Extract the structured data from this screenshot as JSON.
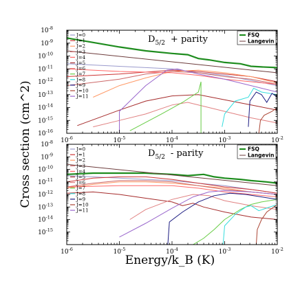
{
  "figure": {
    "ylabel": "Cross section (cm^2)",
    "xlabel": "Energy/k_B (K)"
  },
  "colors": {
    "FSQ": "#1e8c1e",
    "Langevin": "#6b3a3a",
    "J=0": "#9999cc",
    "J=1": "#cc3333",
    "J=2": "#ff9966",
    "J=3": "#cc6666",
    "J=4": "#ff6666",
    "J=5": "#a52a2a",
    "J=6": "#e08080",
    "J=7": "#66cc44",
    "J=8": "#33dddd",
    "J=9": "#1a1a80",
    "J=10": "#aa4433",
    "J=11": "#9966cc"
  },
  "chart_data": [
    {
      "type": "line",
      "title_main": "D",
      "title_sub": "5/2",
      "title_rest": "+ parity",
      "xlabel": "Energy/k_B (K)",
      "ylabel": "Cross section (cm^2)",
      "xscale": "log",
      "yscale": "log",
      "xlim": [
        1e-06,
        0.01
      ],
      "ylim": [
        1e-16,
        1e-08
      ],
      "xticks": [
        -6,
        -5,
        -4,
        -3,
        -2
      ],
      "yticks": [
        -16,
        -15,
        -14,
        -13,
        -12,
        -11,
        -10,
        -9,
        -8
      ],
      "legend_position": "top-right",
      "legend_bold": [
        "FSQ",
        "Langevin"
      ],
      "legend_left": [
        "J=0",
        "J=1",
        "J=2",
        "J=3",
        "J=4",
        "J=5",
        "J=6",
        "J=7",
        "J=8",
        "J=9",
        "J=10",
        "J=11"
      ],
      "series": [
        {
          "name": "FSQ",
          "bold": true,
          "x": [
            -6,
            -5.5,
            -5,
            -4.5,
            -4,
            -3.7,
            -3.5,
            -3.3,
            -3,
            -2.7,
            -2.5,
            -2.3,
            -2
          ],
          "y": [
            -8.6,
            -8.95,
            -9.3,
            -9.6,
            -9.8,
            -9.9,
            -10.2,
            -10.3,
            -10.5,
            -10.6,
            -10.8,
            -10.85,
            -10.9
          ]
        },
        {
          "name": "Langevin",
          "x": [
            -6,
            -2
          ],
          "y": [
            -9.6,
            -11.3
          ]
        },
        {
          "name": "J=0",
          "x": [
            -6,
            -5,
            -4,
            -3.5,
            -3,
            -2.5,
            -2
          ],
          "y": [
            -10.6,
            -10.8,
            -11.0,
            -11.3,
            -11.5,
            -11.9,
            -12.3
          ]
        },
        {
          "name": "J=1",
          "x": [
            -6,
            -5,
            -4,
            -3.5,
            -3,
            -2.5,
            -2
          ],
          "y": [
            -11.6,
            -11.4,
            -11.1,
            -11.2,
            -11.4,
            -11.6,
            -12.0
          ]
        },
        {
          "name": "J=2",
          "x": [
            -5.5,
            -5,
            -4.5,
            -4,
            -3.5,
            -3,
            -2.5,
            -2
          ],
          "y": [
            -13.2,
            -12.3,
            -11.7,
            -11.2,
            -11.1,
            -11.3,
            -11.6,
            -12.1
          ]
        },
        {
          "name": "J=3",
          "x": [
            -6,
            -5,
            -4.5,
            -4,
            -3.5,
            -3,
            -2.5,
            -2
          ],
          "y": [
            -12.3,
            -11.8,
            -11.4,
            -11.2,
            -11.3,
            -11.6,
            -11.8,
            -12.2
          ]
        },
        {
          "name": "J=4",
          "x": [
            -6,
            -5,
            -4,
            -3.5,
            -3,
            -2.5,
            -2
          ],
          "y": [
            -11.0,
            -11.2,
            -11.3,
            -11.5,
            -11.8,
            -12.0,
            -12.2
          ]
        },
        {
          "name": "J=5",
          "x": [
            -5.8,
            -5,
            -4.5,
            -4,
            -3.5,
            -3,
            -2.5,
            -2
          ],
          "y": [
            -15.4,
            -14.2,
            -13.5,
            -13.1,
            -13.0,
            -13.4,
            -13.8,
            -14.2
          ]
        },
        {
          "name": "J=6",
          "x": [
            -5.5,
            -5,
            -4.5,
            -4,
            -3.7,
            -3.4,
            -3,
            -2.5,
            -2
          ],
          "y": [
            -15.5,
            -15.0,
            -14.5,
            -13.8,
            -13.6,
            -13.9,
            -14.3,
            -14.8,
            -15.2
          ]
        },
        {
          "name": "J=7",
          "x": [
            -4.8,
            -4.2,
            -3.8,
            -3.5,
            -3.45,
            -3.45
          ],
          "y": [
            -15.8,
            -14.5,
            -13.6,
            -12.8,
            -12.0,
            -16.0
          ]
        },
        {
          "name": "J=8",
          "x": [
            -3.05,
            -3.0,
            -2.8,
            -2.55,
            -2.45,
            -2.3,
            -2.0
          ],
          "y": [
            -15.5,
            -14.5,
            -13.5,
            -13.2,
            -12.5,
            -12.8,
            -13.0
          ]
        },
        {
          "name": "J=9",
          "x": [
            -2.55,
            -2.52,
            -2.4,
            -2.3,
            -2.2,
            -2.1,
            -2.0
          ],
          "y": [
            -15.5,
            -13.5,
            -12.8,
            -13.0,
            -13.6,
            -12.9,
            -13.2
          ]
        },
        {
          "name": "J=10",
          "x": [
            -2.35,
            -2.32,
            -2.25,
            -2.1,
            -2.0
          ],
          "y": [
            -16.0,
            -15.0,
            -14.6,
            -14.3,
            -14.0
          ]
        },
        {
          "name": "J=11",
          "x": [
            -5.0,
            -5.0,
            -4.8,
            -4.5,
            -4.1,
            -3.9,
            -3.5,
            -3.0,
            -2.5,
            -2.0
          ],
          "y": [
            -16.0,
            -14.3,
            -13.5,
            -12.3,
            -11.1,
            -11.0,
            -11.4,
            -11.8,
            -12.3,
            -12.8
          ]
        }
      ]
    },
    {
      "type": "line",
      "title_main": "D",
      "title_sub": "5/2",
      "title_rest": "- parity",
      "xlabel": "Energy/k_B (K)",
      "ylabel": "Cross section (cm^2)",
      "xscale": "log",
      "yscale": "log",
      "xlim": [
        1e-06,
        0.01
      ],
      "ylim": [
        1e-16,
        1e-08
      ],
      "xticks": [
        -6,
        -5,
        -4,
        -3,
        -2
      ],
      "yticks": [
        -15,
        -14,
        -13,
        -12,
        -11,
        -10,
        -9,
        -8
      ],
      "legend_position": "top-right",
      "legend_bold": [
        "FSQ",
        "Langevin"
      ],
      "legend_left": [
        "J=0",
        "J=1",
        "J=2",
        "J=3",
        "J=4",
        "J=5",
        "J=6",
        "J=7",
        "J=8",
        "J=9",
        "J=10",
        "J=11"
      ],
      "series": [
        {
          "name": "FSQ",
          "bold": true,
          "x": [
            -6,
            -5.5,
            -5,
            -4.5,
            -4,
            -3.7,
            -3.4,
            -3.2,
            -3,
            -2.7,
            -2.5,
            -2.2,
            -2
          ],
          "y": [
            -10.4,
            -10.3,
            -10.3,
            -10.3,
            -10.4,
            -10.5,
            -10.4,
            -10.6,
            -10.7,
            -10.8,
            -10.9,
            -11.0,
            -11.1
          ]
        },
        {
          "name": "Langevin",
          "x": [
            -6,
            -2
          ],
          "y": [
            -9.6,
            -11.3
          ]
        },
        {
          "name": "J=0",
          "x": [
            -6,
            -5,
            -4,
            -3.5,
            -3,
            -2.5,
            -2
          ],
          "y": [
            -10.5,
            -10.7,
            -10.9,
            -11.1,
            -11.3,
            -11.6,
            -11.9
          ]
        },
        {
          "name": "J=1",
          "x": [
            -6,
            -5.5,
            -5,
            -4.5,
            -4,
            -3.5,
            -3,
            -2.5,
            -2
          ],
          "y": [
            -11.0,
            -10.7,
            -10.6,
            -10.6,
            -10.8,
            -11.1,
            -11.4,
            -11.6,
            -11.9
          ]
        },
        {
          "name": "J=2",
          "x": [
            -6,
            -5.5,
            -5,
            -4.5,
            -4,
            -3.5,
            -3,
            -2.5,
            -2
          ],
          "y": [
            -11.5,
            -11.2,
            -11.0,
            -11.0,
            -11.1,
            -11.3,
            -11.5,
            -11.8,
            -12.0
          ]
        },
        {
          "name": "J=3",
          "x": [
            -6,
            -5.5,
            -5,
            -4.5,
            -4,
            -3.5,
            -3,
            -2.5,
            -2
          ],
          "y": [
            -11.4,
            -11.1,
            -10.9,
            -10.9,
            -11.0,
            -11.3,
            -11.6,
            -11.8,
            -12.0
          ]
        },
        {
          "name": "J=4",
          "x": [
            -6,
            -5,
            -4,
            -3.5,
            -3,
            -2.5,
            -2
          ],
          "y": [
            -11.4,
            -11.3,
            -11.3,
            -11.5,
            -11.8,
            -12.0,
            -12.2
          ]
        },
        {
          "name": "J=5",
          "x": [
            -6,
            -5.5,
            -5,
            -4.5,
            -4,
            -3.8,
            -3.6,
            -3.4,
            -3,
            -2.5,
            -2
          ],
          "y": [
            -11.9,
            -11.8,
            -12.0,
            -12.3,
            -12.6,
            -12.9,
            -12.7,
            -13.0,
            -13.4,
            -13.8,
            -14.0
          ]
        },
        {
          "name": "J=6",
          "x": [
            -4.8,
            -4.5,
            -4,
            -3.6,
            -3.3,
            -3,
            -2.5,
            -2
          ],
          "y": [
            -14.0,
            -13.2,
            -12.4,
            -12.0,
            -12.1,
            -12.5,
            -12.9,
            -13.2
          ]
        },
        {
          "name": "J=7",
          "x": [
            -3.6,
            -3.4,
            -3.2,
            -3.0,
            -2.7,
            -2.5,
            -2.3,
            -2.0
          ],
          "y": [
            -16.0,
            -15.5,
            -14.8,
            -14.0,
            -13.2,
            -12.8,
            -12.6,
            -12.4
          ]
        },
        {
          "name": "J=8",
          "x": [
            -3.03,
            -3.0,
            -2.8,
            -2.6,
            -2.5,
            -2.35,
            -2.0
          ],
          "y": [
            -16.0,
            -14.5,
            -13.6,
            -13.0,
            -12.9,
            -13.3,
            -12.8
          ]
        },
        {
          "name": "J=9",
          "x": [
            -4.08,
            -4.05,
            -3.8,
            -3.5,
            -3.2,
            -2.9,
            -2.6,
            -2.3,
            -2.0
          ],
          "y": [
            -16.0,
            -14.2,
            -13.4,
            -12.6,
            -12.1,
            -11.9,
            -12.0,
            -12.2,
            -12.4
          ]
        },
        {
          "name": "J=10",
          "x": [
            -2.4,
            -2.38,
            -2.3,
            -2.2,
            -2.0
          ],
          "y": [
            -16.0,
            -14.8,
            -14.0,
            -13.4,
            -12.8
          ]
        },
        {
          "name": "J=11",
          "x": [
            -5.0,
            -4.5,
            -4.0,
            -3.6,
            -3.3,
            -3.0,
            -2.5,
            -2.0
          ],
          "y": [
            -15.4,
            -14.3,
            -13.1,
            -12.2,
            -11.8,
            -11.7,
            -11.8,
            -12.0
          ]
        }
      ]
    }
  ]
}
